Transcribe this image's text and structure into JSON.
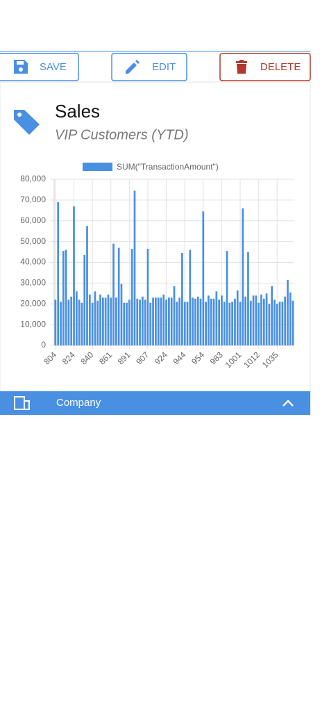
{
  "toolbar": {
    "save": "SAVE",
    "edit": "EDIT",
    "delete": "DELETE"
  },
  "header": {
    "title": "Sales",
    "subtitle": "VIP Customers (YTD)"
  },
  "footer": {
    "label": "Company"
  },
  "chart_data": {
    "type": "bar",
    "categories": [
      "804",
      null,
      null,
      null,
      null,
      null,
      null,
      "824",
      null,
      null,
      null,
      null,
      null,
      null,
      "840",
      null,
      null,
      null,
      null,
      null,
      null,
      "861",
      null,
      null,
      null,
      null,
      null,
      null,
      "891",
      null,
      null,
      null,
      null,
      null,
      null,
      "907",
      null,
      null,
      null,
      null,
      null,
      null,
      "924",
      null,
      null,
      null,
      null,
      null,
      null,
      "944",
      null,
      null,
      null,
      null,
      null,
      null,
      "954",
      null,
      null,
      null,
      null,
      null,
      null,
      "983",
      null,
      null,
      null,
      null,
      null,
      null,
      "1001",
      null,
      null,
      null,
      null,
      null,
      null,
      "1012",
      null,
      null,
      null,
      null,
      null,
      null,
      "1035",
      null,
      null,
      null,
      null,
      null,
      null
    ],
    "series": [
      {
        "name": "SUM(\"TransactionAmount\")",
        "color": "#4a90e2",
        "values": [
          22000,
          69000,
          21000,
          45500,
          46000,
          22000,
          23500,
          67000,
          26000,
          22000,
          20500,
          43500,
          57500,
          24500,
          20500,
          26000,
          21500,
          24500,
          23000,
          23000,
          24500,
          23000,
          49000,
          23000,
          47000,
          29500,
          20500,
          20500,
          22000,
          46500,
          74500,
          22500,
          22000,
          23500,
          22000,
          46500,
          20500,
          23000,
          23000,
          23000,
          23000,
          24500,
          22000,
          23000,
          23000,
          28500,
          21000,
          23000,
          44500,
          21000,
          21000,
          46000,
          23000,
          22500,
          23500,
          22500,
          64500,
          21000,
          24000,
          22500,
          22500,
          26000,
          22000,
          24000,
          21000,
          45500,
          20500,
          21000,
          22500,
          26500,
          21000,
          66000,
          23500,
          45000,
          21500,
          24000,
          24000,
          20500,
          24500,
          22500,
          25000,
          20000,
          28500,
          22000,
          20000,
          21000,
          21000,
          23500,
          31500,
          25500,
          21500
        ]
      }
    ],
    "ylim": [
      0,
      80000
    ],
    "yticks": [
      0,
      {
        "value": 10000,
        "label": "10,000"
      },
      {
        "value": 20000,
        "label": "20,000"
      },
      {
        "value": 30000,
        "label": "30,000"
      },
      {
        "value": 40000,
        "label": "40,000"
      },
      {
        "value": 50000,
        "label": "50,000"
      },
      {
        "value": 60000,
        "label": "60,000"
      },
      {
        "value": 70000,
        "label": "70,000"
      },
      {
        "value": 80000,
        "label": "80,000"
      }
    ],
    "grid": true
  }
}
